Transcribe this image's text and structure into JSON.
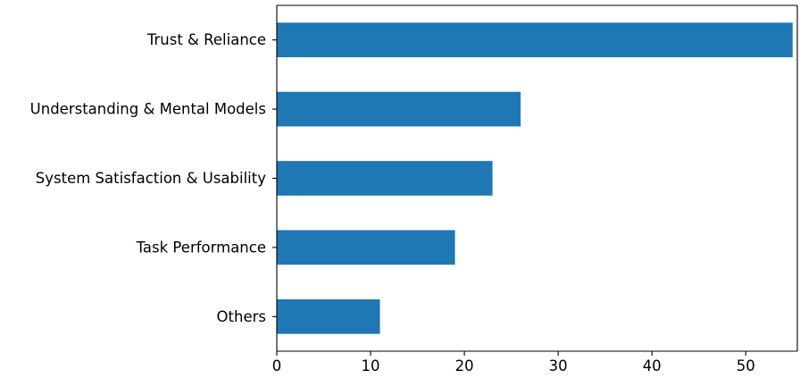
{
  "chart_data": {
    "type": "bar",
    "orientation": "horizontal",
    "categories": [
      "Trust & Reliance",
      "Understanding & Mental Models",
      "System Satisfaction & Usability",
      "Task Performance",
      "Others"
    ],
    "values": [
      55,
      26,
      23,
      19,
      11
    ],
    "xlim": [
      0,
      55.5
    ],
    "xticks": [
      0,
      10,
      20,
      30,
      40,
      50
    ],
    "title": "",
    "xlabel": "",
    "ylabel": "",
    "bar_color": "#1f77b4",
    "grid": false,
    "legend": "none"
  }
}
